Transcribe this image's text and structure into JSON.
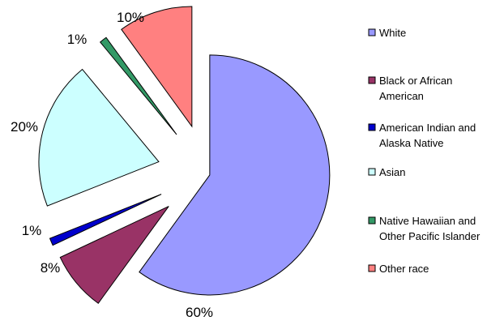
{
  "chart_data": {
    "type": "pie",
    "title": "",
    "exploded": true,
    "legend_position": "right",
    "slices": [
      {
        "label": "White",
        "legend_lines": [
          "White"
        ],
        "value": 60,
        "value_label": "60%",
        "color": "#9999FF"
      },
      {
        "label": "Black or African American",
        "legend_lines": [
          "Black or African",
          "American"
        ],
        "value": 8,
        "value_label": "8%",
        "color": "#993366"
      },
      {
        "label": "American Indian and Alaska Native",
        "legend_lines": [
          "American Indian and",
          "Alaska Native"
        ],
        "value": 1,
        "value_label": "1%",
        "color": "#0000CC"
      },
      {
        "label": "Asian",
        "legend_lines": [
          "Asian"
        ],
        "value": 20,
        "value_label": "20%",
        "color": "#CCFFFF"
      },
      {
        "label": "Native Hawaiian and Other Pacific Islander",
        "legend_lines": [
          "Native Hawaiian and",
          "Other Pacific Islander"
        ],
        "value": 1,
        "value_label": "1%",
        "color": "#339966"
      },
      {
        "label": "Other race",
        "legend_lines": [
          "Other race"
        ],
        "value": 10,
        "value_label": "10%",
        "color": "#FF8080"
      }
    ]
  }
}
